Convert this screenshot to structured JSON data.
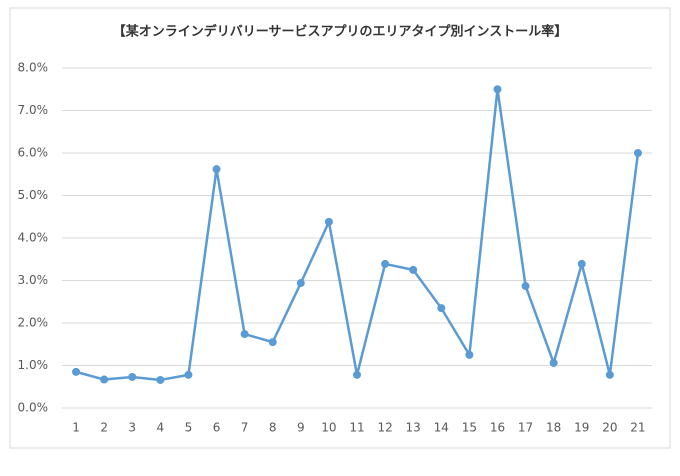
{
  "chart_data": {
    "type": "line",
    "title": "【某オンラインデリバリーサービスアプリのエリアタイプ別インストール率】",
    "categories": [
      "1",
      "2",
      "3",
      "4",
      "5",
      "6",
      "7",
      "8",
      "9",
      "10",
      "11",
      "12",
      "13",
      "14",
      "15",
      "16",
      "17",
      "18",
      "19",
      "20",
      "21"
    ],
    "series": [
      {
        "name": "インストール率",
        "color": "#5b9bd5",
        "values": [
          0.85,
          0.67,
          0.73,
          0.66,
          0.78,
          5.62,
          1.74,
          1.55,
          2.94,
          4.38,
          0.78,
          3.39,
          3.25,
          2.35,
          1.25,
          7.5,
          2.87,
          1.06,
          3.39,
          0.78,
          6.0
        ]
      }
    ],
    "ylim": [
      0,
      8
    ],
    "yticks": [
      {
        "value": 0,
        "label": "0.0%"
      },
      {
        "value": 1,
        "label": "1.0%"
      },
      {
        "value": 2,
        "label": "2.0%"
      },
      {
        "value": 3,
        "label": "3.0%"
      },
      {
        "value": 4,
        "label": "4.0%"
      },
      {
        "value": 5,
        "label": "5.0%"
      },
      {
        "value": 6,
        "label": "6.0%"
      },
      {
        "value": 7,
        "label": "7.0%"
      },
      {
        "value": 8,
        "label": "8.0%"
      }
    ],
    "grid": true
  }
}
